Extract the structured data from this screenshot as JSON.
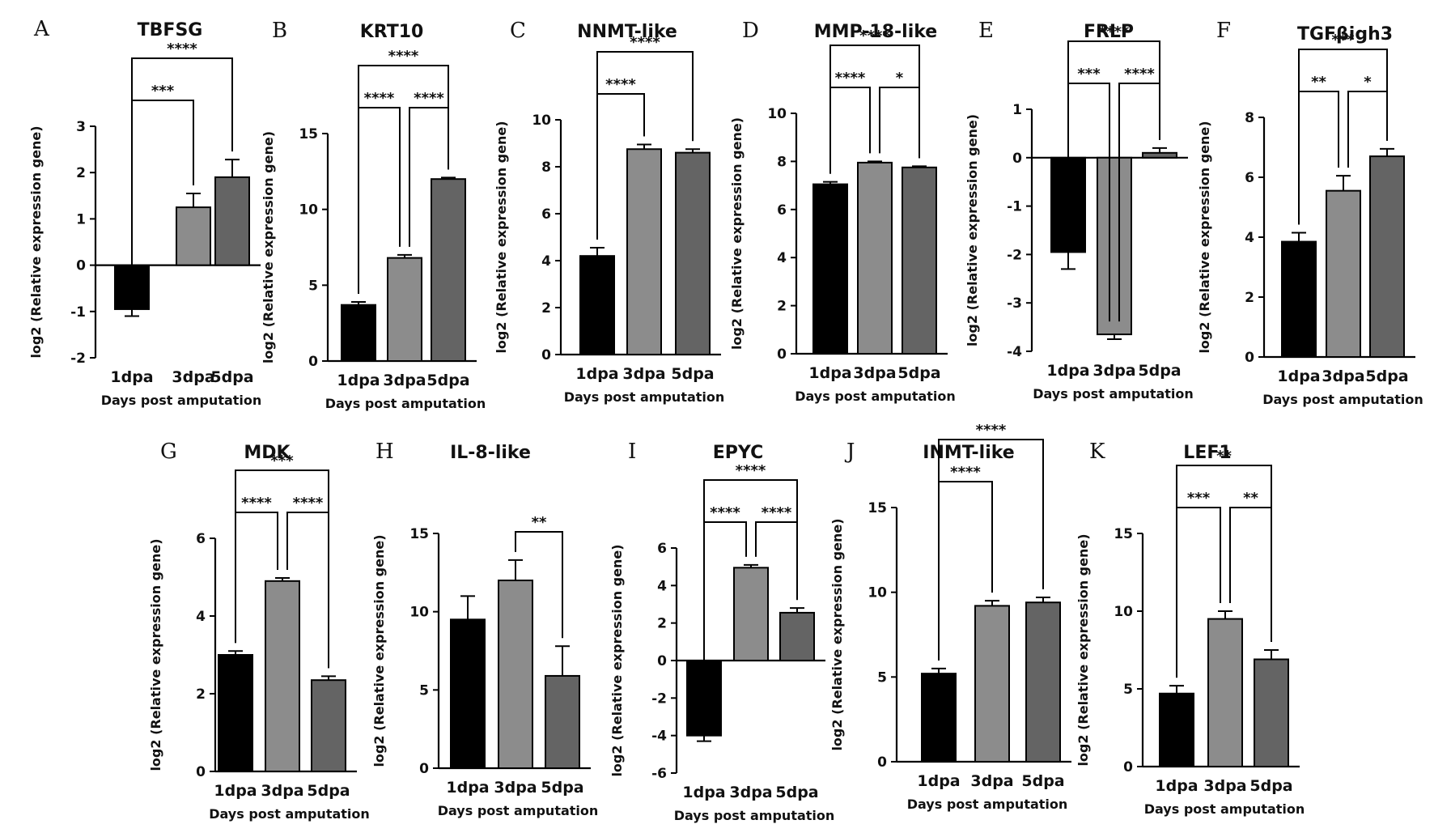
{
  "colors": {
    "1dpa": "#000000",
    "3dpa": "#8c8c8c",
    "5dpa": "#646464",
    "axis": "#000000"
  },
  "chart_data": [
    {
      "letter": "A",
      "type": "bar",
      "title": "TBFSG",
      "categories": [
        "1dpa",
        "3dpa",
        "5dpa"
      ],
      "values": [
        -0.95,
        1.25,
        1.9
      ],
      "errors": [
        0.15,
        0.3,
        0.38
      ],
      "ylim": [
        -2,
        3
      ],
      "yticks": [
        -2,
        -1,
        0,
        1,
        2,
        3
      ],
      "xlabel": "Days post amputation",
      "ylabel": "log2 (Relative expression gene)",
      "significance": [
        {
          "from": 0,
          "to": 1,
          "label": "***"
        },
        {
          "from": 0,
          "to": 2,
          "label": "****"
        }
      ]
    },
    {
      "letter": "B",
      "type": "bar",
      "title": "KRT10",
      "categories": [
        "1dpa",
        "3dpa",
        "5dpa"
      ],
      "values": [
        3.7,
        6.8,
        12.0
      ],
      "errors": [
        0.2,
        0.2,
        0.1
      ],
      "ylim": [
        0,
        15
      ],
      "yticks": [
        0,
        5,
        10,
        15
      ],
      "xlabel": "Days post amputation",
      "ylabel": "log2 (Relative expression gene)",
      "significance": [
        {
          "from": 0,
          "to": 1,
          "label": "****"
        },
        {
          "from": 1,
          "to": 2,
          "label": "****"
        },
        {
          "from": 0,
          "to": 2,
          "label": "****"
        }
      ]
    },
    {
      "letter": "C",
      "type": "bar",
      "title": "NNMT-like",
      "categories": [
        "1dpa",
        "3dpa",
        "5dpa"
      ],
      "values": [
        4.2,
        8.75,
        8.6
      ],
      "errors": [
        0.35,
        0.2,
        0.15
      ],
      "ylim": [
        0,
        10
      ],
      "yticks": [
        0,
        2,
        4,
        6,
        8,
        10
      ],
      "xlabel": "Days post amputation",
      "ylabel": "log2 (Relative expression gene)",
      "significance": [
        {
          "from": 0,
          "to": 1,
          "label": "****"
        },
        {
          "from": 0,
          "to": 2,
          "label": "****"
        }
      ]
    },
    {
      "letter": "D",
      "type": "bar",
      "title": "MMP-18-like",
      "categories": [
        "1dpa",
        "3dpa",
        "5dpa"
      ],
      "values": [
        7.05,
        7.95,
        7.75
      ],
      "errors": [
        0.1,
        0.05,
        0.05
      ],
      "ylim": [
        0,
        10
      ],
      "yticks": [
        0,
        2,
        4,
        6,
        8,
        10
      ],
      "xlabel": "Days post amputation",
      "ylabel": "log2 (Relative expression gene)",
      "significance": [
        {
          "from": 0,
          "to": 1,
          "label": "****"
        },
        {
          "from": 1,
          "to": 2,
          "label": "*"
        },
        {
          "from": 0,
          "to": 2,
          "label": "****"
        }
      ]
    },
    {
      "letter": "E",
      "type": "bar",
      "title": "FRLP",
      "categories": [
        "1dpa",
        "3dpa",
        "5dpa"
      ],
      "values": [
        -1.95,
        -3.65,
        0.1
      ],
      "errors": [
        0.35,
        0.1,
        0.1
      ],
      "ylim": [
        -4,
        1
      ],
      "yticks": [
        -4,
        -3,
        -2,
        -1,
        0,
        1
      ],
      "xlabel": "Days post amputation",
      "ylabel": "log2 (Relative expression gene)",
      "significance": [
        {
          "from": 0,
          "to": 1,
          "label": "***"
        },
        {
          "from": 1,
          "to": 2,
          "label": "****"
        },
        {
          "from": 0,
          "to": 2,
          "label": "****"
        }
      ]
    },
    {
      "letter": "F",
      "type": "bar",
      "title": "TGFβigh3",
      "categories": [
        "1dpa",
        "3dpa",
        "5dpa"
      ],
      "values": [
        3.85,
        5.55,
        6.7
      ],
      "errors": [
        0.3,
        0.5,
        0.25
      ],
      "ylim": [
        0,
        8
      ],
      "yticks": [
        0,
        2,
        4,
        6,
        8
      ],
      "xlabel": "Days post amputation",
      "ylabel": "log2 (Relative expression gene)",
      "significance": [
        {
          "from": 0,
          "to": 1,
          "label": "**"
        },
        {
          "from": 1,
          "to": 2,
          "label": "*"
        },
        {
          "from": 0,
          "to": 2,
          "label": "***"
        }
      ]
    },
    {
      "letter": "G",
      "type": "bar",
      "title": "MDK",
      "categories": [
        "1dpa",
        "3dpa",
        "5dpa"
      ],
      "values": [
        3.0,
        4.9,
        2.35
      ],
      "errors": [
        0.1,
        0.08,
        0.1
      ],
      "ylim": [
        0,
        6
      ],
      "yticks": [
        0,
        2,
        4,
        6
      ],
      "xlabel": "Days post amputation",
      "ylabel": "log2 (Relative expression gene)",
      "significance": [
        {
          "from": 0,
          "to": 1,
          "label": "****"
        },
        {
          "from": 1,
          "to": 2,
          "label": "****"
        },
        {
          "from": 0,
          "to": 2,
          "label": "***"
        }
      ]
    },
    {
      "letter": "H",
      "type": "bar",
      "title": "IL-8-like",
      "categories": [
        "1dpa",
        "3dpa",
        "5dpa"
      ],
      "values": [
        9.5,
        12.0,
        5.9
      ],
      "errors": [
        1.5,
        1.3,
        1.9
      ],
      "ylim": [
        0,
        15
      ],
      "yticks": [
        0,
        5,
        10,
        15
      ],
      "xlabel": "Days post amputation",
      "ylabel": "log2 (Relative expression gene)",
      "significance": [
        {
          "from": 1,
          "to": 2,
          "label": "**"
        }
      ]
    },
    {
      "letter": "I",
      "type": "bar",
      "title": "EPYC",
      "categories": [
        "1dpa",
        "3dpa",
        "5dpa"
      ],
      "values": [
        -4.0,
        4.95,
        2.55
      ],
      "errors": [
        0.3,
        0.15,
        0.25
      ],
      "ylim": [
        -6,
        6
      ],
      "yticks": [
        -6,
        -4,
        -2,
        0,
        2,
        4,
        6
      ],
      "xlabel": "Days post amputation",
      "ylabel": "log2 (Relative expression gene)",
      "significance": [
        {
          "from": 0,
          "to": 1,
          "label": "****"
        },
        {
          "from": 1,
          "to": 2,
          "label": "****"
        },
        {
          "from": 0,
          "to": 2,
          "label": "****"
        }
      ]
    },
    {
      "letter": "J",
      "type": "bar",
      "title": "INMT-like",
      "categories": [
        "1dpa",
        "3dpa",
        "5dpa"
      ],
      "values": [
        5.2,
        9.2,
        9.4
      ],
      "errors": [
        0.3,
        0.3,
        0.3
      ],
      "ylim": [
        0,
        15
      ],
      "yticks": [
        0,
        5,
        10,
        15
      ],
      "xlabel": "Days post amputation",
      "ylabel": "log2 (Relative expression gene)",
      "significance": [
        {
          "from": 0,
          "to": 1,
          "label": "****"
        },
        {
          "from": 0,
          "to": 2,
          "label": "****"
        }
      ]
    },
    {
      "letter": "K",
      "type": "bar",
      "title": "LEF1",
      "categories": [
        "1dpa",
        "3dpa",
        "5dpa"
      ],
      "values": [
        4.7,
        9.5,
        6.9
      ],
      "errors": [
        0.5,
        0.5,
        0.6
      ],
      "ylim": [
        0,
        15
      ],
      "yticks": [
        0,
        5,
        10,
        15
      ],
      "xlabel": "Days post amputation",
      "ylabel": "log2 (Relative expression gene)",
      "significance": [
        {
          "from": 0,
          "to": 1,
          "label": "***"
        },
        {
          "from": 1,
          "to": 2,
          "label": "**"
        },
        {
          "from": 0,
          "to": 2,
          "label": "**"
        }
      ]
    }
  ]
}
